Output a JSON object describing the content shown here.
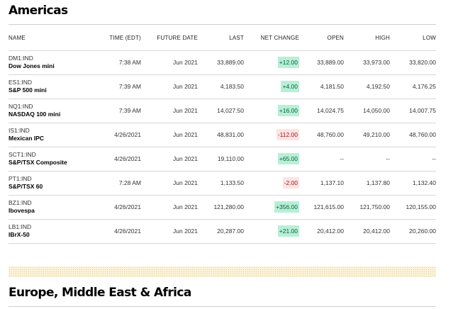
{
  "americas": {
    "title": "Americas",
    "columns": [
      "NAME",
      "TIME (EDT)",
      "FUTURE DATE",
      "LAST",
      "NET CHANGE",
      "OPEN",
      "HIGH",
      "LOW"
    ],
    "rows": [
      {
        "ticker": "DM1:IND",
        "name": "Dow Jones mini",
        "time": "7:38 AM",
        "future_date": "Jun 2021",
        "last": "33,889.00",
        "net_change": "+12.00",
        "direction": "up",
        "open": "33,889.00",
        "high": "33,973.00",
        "low": "33,820.00"
      },
      {
        "ticker": "ES1:IND",
        "name": "S&P 500 mini",
        "time": "7:39 AM",
        "future_date": "Jun 2021",
        "last": "4,183.50",
        "net_change": "+4.00",
        "direction": "up",
        "open": "4,181.50",
        "high": "4,192.50",
        "low": "4,176.25"
      },
      {
        "ticker": "NQ1:IND",
        "name": "NASDAQ 100 mini",
        "time": "7:39 AM",
        "future_date": "Jun 2021",
        "last": "14,027.50",
        "net_change": "+16.00",
        "direction": "up",
        "open": "14,024.75",
        "high": "14,050.00",
        "low": "14,007.75"
      },
      {
        "ticker": "IS1:IND",
        "name": "Mexican IPC",
        "time": "4/26/2021",
        "future_date": "Jun 2021",
        "last": "48,831.00",
        "net_change": "-112.00",
        "direction": "down",
        "open": "48,760.00",
        "high": "49,210.00",
        "low": "48,760.00"
      },
      {
        "ticker": "SCT1:IND",
        "name": "S&P/TSX Composite",
        "time": "4/26/2021",
        "future_date": "Jun 2021",
        "last": "19,110.00",
        "net_change": "+65.00",
        "direction": "up",
        "open": "--",
        "high": "--",
        "low": "--"
      },
      {
        "ticker": "PT1:IND",
        "name": "S&P/TSX 60",
        "time": "7:28 AM",
        "future_date": "Jun 2021",
        "last": "1,133.50",
        "net_change": "-2.00",
        "direction": "down",
        "open": "1,137.10",
        "high": "1,137.80",
        "low": "1,132.40"
      },
      {
        "ticker": "BZ1:IND",
        "name": "Ibovespa",
        "time": "4/26/2021",
        "future_date": "Jun 2021",
        "last": "121,280.00",
        "net_change": "+356.00",
        "direction": "up",
        "open": "121,615.00",
        "high": "121,750.00",
        "low": "120,155.00"
      },
      {
        "ticker": "LB1:IND",
        "name": "IBrX-50",
        "time": "4/26/2021",
        "future_date": "Jun 2021",
        "last": "20,287.00",
        "net_change": "+21.00",
        "direction": "up",
        "open": "20,412.00",
        "high": "20,412.00",
        "low": "20,260.00"
      }
    ]
  },
  "emea": {
    "title": "Europe, Middle East & Africa"
  },
  "colors": {
    "up_bg": "#b8efd7",
    "down_bg": "#ffe3e3",
    "band_bg": "#fbf2d8"
  }
}
